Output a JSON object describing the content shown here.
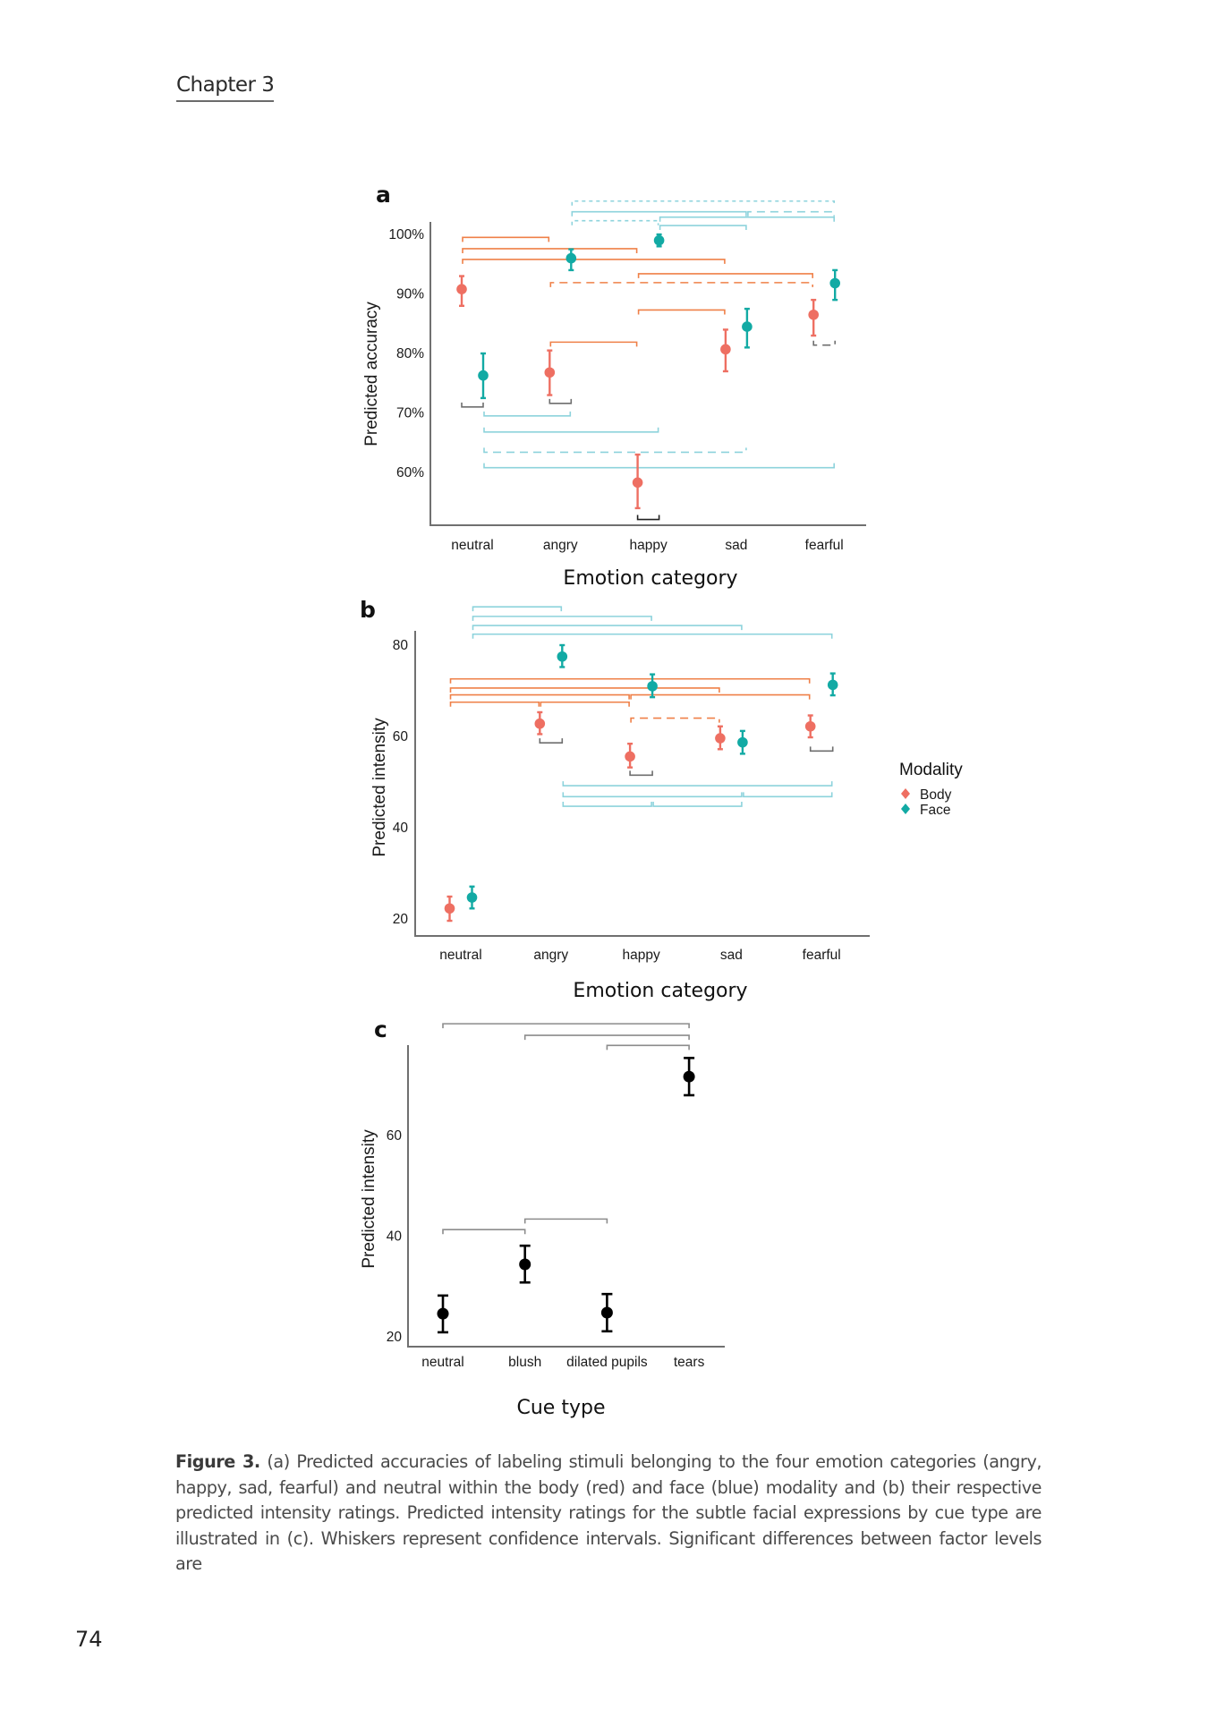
{
  "page": {
    "running_head": "Chapter 3",
    "page_number": "74",
    "caption": {
      "label": "Figure 3.",
      "text": " (a) Predicted accuracies of labeling stimuli belonging to the four emotion categories (angry, happy, sad, fearful) and neutral within the body (red) and face (blue) modality and (b) their respective predicted intensity ratings. Predicted intensity ratings for the subtle facial expressions by cue type are illustrated in (c). Whiskers represent confidence intervals. Significant differences between factor levels are"
    }
  },
  "colors": {
    "body": "#ee6f62",
    "face": "#12aaa4",
    "body_bracket": "#ef8048",
    "face_bracket": "#8dd3dc",
    "within_bracket": "#6e6e6e",
    "cue_points": "#000000",
    "cue_bracket": "#8c8c8c",
    "axis": "#707070"
  },
  "chart_data": [
    {
      "panel": "a",
      "type": "scatter",
      "title": "",
      "xlabel": "Emotion category",
      "ylabel": "Predicted accuracy",
      "categories": [
        "neutral",
        "angry",
        "happy",
        "sad",
        "fearful"
      ],
      "yticks": [
        60,
        70,
        80,
        90,
        100
      ],
      "ytick_labels": [
        "60%",
        "70%",
        "80%",
        "90%",
        "100%"
      ],
      "ylim": [
        55,
        102.5
      ],
      "grid": false,
      "series": [
        {
          "name": "Body",
          "color_key": "body",
          "values": [
            90.8,
            76.8,
            58.3,
            80.7,
            86.5
          ],
          "ci_low": [
            88.0,
            73.0,
            54.0,
            77.0,
            83.0
          ],
          "ci_high": [
            93.0,
            80.5,
            63.0,
            84.0,
            89.0
          ]
        },
        {
          "name": "Face",
          "color_key": "face",
          "values": [
            76.3,
            96.0,
            99.0,
            84.5,
            91.8
          ],
          "ci_low": [
            72.5,
            94.0,
            98.0,
            81.0,
            89.0
          ],
          "ci_high": [
            80.0,
            97.5,
            100.0,
            87.5,
            94.0
          ]
        }
      ],
      "brackets": [
        {
          "group": "face",
          "from": "angry",
          "to": "fearful",
          "y": 105.6,
          "style": "dotted",
          "dir": "down"
        },
        {
          "group": "face",
          "from": "angry",
          "to": "sad",
          "y": 103.8,
          "style": "solid",
          "dir": "down"
        },
        {
          "group": "face",
          "from": "sad",
          "to": "fearful",
          "y": 103.8,
          "style": "dashed",
          "dir": "down"
        },
        {
          "group": "face",
          "from": "happy",
          "to": "fearful",
          "y": 102.9,
          "style": "solid",
          "dir": "down"
        },
        {
          "group": "face",
          "from": "angry",
          "to": "happy",
          "y": 102.3,
          "style": "dotted",
          "dir": "down"
        },
        {
          "group": "face",
          "from": "happy",
          "to": "sad",
          "y": 101.5,
          "style": "solid",
          "dir": "down"
        },
        {
          "group": "body",
          "from": "neutral",
          "to": "angry",
          "y": 99.5,
          "style": "solid",
          "dir": "down"
        },
        {
          "group": "body",
          "from": "neutral",
          "to": "happy",
          "y": 97.6,
          "style": "solid",
          "dir": "down"
        },
        {
          "group": "body",
          "from": "neutral",
          "to": "sad",
          "y": 95.8,
          "style": "solid",
          "dir": "down"
        },
        {
          "group": "body",
          "from": "happy",
          "to": "fearful",
          "y": 93.4,
          "style": "solid",
          "dir": "down"
        },
        {
          "group": "body",
          "from": "angry",
          "to": "fearful",
          "y": 91.9,
          "style": "dashed",
          "dir": "down"
        },
        {
          "group": "body",
          "from": "happy",
          "to": "sad",
          "y": 87.3,
          "style": "solid",
          "dir": "down"
        },
        {
          "group": "body",
          "from": "angry",
          "to": "happy",
          "y": 81.9,
          "style": "solid",
          "dir": "down"
        },
        {
          "group": "within",
          "at": "neutral",
          "y": 71.0,
          "style": "solid",
          "dir": "up"
        },
        {
          "group": "within",
          "at": "angry",
          "y": 71.6,
          "style": "solid",
          "dir": "up"
        },
        {
          "group": "within",
          "at": "happy",
          "y": 52.1,
          "style": "solid",
          "dir": "up"
        },
        {
          "group": "within",
          "at": "fearful",
          "y": 81.4,
          "style": "dashed",
          "dir": "up"
        },
        {
          "group": "face",
          "from": "neutral",
          "to": "angry",
          "y": 69.5,
          "style": "solid",
          "dir": "up"
        },
        {
          "group": "face",
          "from": "neutral",
          "to": "happy",
          "y": 66.8,
          "style": "solid",
          "dir": "up"
        },
        {
          "group": "face",
          "from": "neutral",
          "to": "sad",
          "y": 63.4,
          "style": "dashed",
          "dir": "up"
        },
        {
          "group": "face",
          "from": "neutral",
          "to": "fearful",
          "y": 60.8,
          "style": "solid",
          "dir": "up"
        }
      ]
    },
    {
      "panel": "b",
      "type": "scatter",
      "title": "",
      "xlabel": "Emotion category",
      "ylabel": "Predicted intensity",
      "categories": [
        "neutral",
        "angry",
        "happy",
        "sad",
        "fearful"
      ],
      "yticks": [
        20,
        40,
        60,
        80
      ],
      "ytick_labels": [
        "20",
        "40",
        "60",
        "80"
      ],
      "ylim": [
        16.8,
        83.2
      ],
      "grid": false,
      "legend": {
        "title": "Modality",
        "position": "right",
        "entries": [
          "Body",
          "Face"
        ]
      },
      "series": [
        {
          "name": "Body",
          "color_key": "body",
          "values": [
            22.3,
            62.8,
            55.6,
            59.6,
            62.2
          ],
          "ci_low": [
            19.6,
            60.5,
            53.2,
            57.2,
            59.8
          ],
          "ci_high": [
            24.9,
            65.3,
            58.4,
            62.2,
            64.6
          ]
        },
        {
          "name": "Face",
          "color_key": "face",
          "values": [
            24.7,
            77.5,
            71.0,
            58.7,
            71.3
          ],
          "ci_low": [
            22.3,
            75.2,
            68.6,
            56.2,
            69.0
          ],
          "ci_high": [
            27.1,
            80.0,
            73.6,
            61.2,
            73.8
          ]
        }
      ],
      "brackets": [
        {
          "group": "face",
          "from": "neutral",
          "to": "angry",
          "y": 88.4,
          "style": "solid",
          "dir": "down"
        },
        {
          "group": "face",
          "from": "neutral",
          "to": "happy",
          "y": 86.3,
          "style": "solid",
          "dir": "down"
        },
        {
          "group": "face",
          "from": "neutral",
          "to": "sad",
          "y": 84.3,
          "style": "solid",
          "dir": "down"
        },
        {
          "group": "face",
          "from": "neutral",
          "to": "fearful",
          "y": 82.4,
          "style": "solid",
          "dir": "down"
        },
        {
          "group": "body",
          "from": "neutral",
          "to": "fearful",
          "y": 72.6,
          "style": "solid",
          "dir": "down"
        },
        {
          "group": "body",
          "from": "neutral",
          "to": "sad",
          "y": 70.6,
          "style": "solid",
          "dir": "down"
        },
        {
          "group": "body",
          "from": "neutral",
          "to": "happy",
          "y": 69.1,
          "style": "solid",
          "dir": "down"
        },
        {
          "group": "body",
          "from": "happy",
          "to": "fearful",
          "y": 69.1,
          "style": "solid",
          "dir": "down"
        },
        {
          "group": "body",
          "from": "neutral",
          "to": "angry",
          "y": 67.5,
          "style": "solid",
          "dir": "down"
        },
        {
          "group": "body",
          "from": "angry",
          "to": "happy",
          "y": 67.5,
          "style": "solid",
          "dir": "down"
        },
        {
          "group": "body",
          "from": "happy",
          "to": "sad",
          "y": 64.0,
          "style": "dashed",
          "dir": "down"
        },
        {
          "group": "within",
          "at": "angry",
          "y": 58.6,
          "style": "solid",
          "dir": "up"
        },
        {
          "group": "within",
          "at": "happy",
          "y": 51.5,
          "style": "solid",
          "dir": "up"
        },
        {
          "group": "within",
          "at": "fearful",
          "y": 56.8,
          "style": "solid",
          "dir": "up"
        },
        {
          "group": "face",
          "from": "angry",
          "to": "fearful",
          "y": 49.2,
          "style": "solid",
          "dir": "up"
        },
        {
          "group": "face",
          "from": "angry",
          "to": "sad",
          "y": 46.8,
          "style": "solid",
          "dir": "up"
        },
        {
          "group": "face",
          "from": "sad",
          "to": "fearful",
          "y": 46.8,
          "style": "solid",
          "dir": "up"
        },
        {
          "group": "face",
          "from": "angry",
          "to": "happy",
          "y": 44.7,
          "style": "solid",
          "dir": "up"
        },
        {
          "group": "face",
          "from": "happy",
          "to": "sad",
          "y": 44.7,
          "style": "solid",
          "dir": "up"
        }
      ]
    },
    {
      "panel": "c",
      "type": "scatter",
      "title": "",
      "xlabel": "Cue type",
      "ylabel": "Predicted intensity",
      "categories": [
        "neutral",
        "blush",
        "dilated pupils",
        "tears"
      ],
      "yticks": [
        20,
        40,
        60
      ],
      "ytick_labels": [
        "20",
        "40",
        "60"
      ],
      "ylim": [
        18.2,
        78.0
      ],
      "grid": false,
      "series": [
        {
          "name": "Cue",
          "color_key": "cue_points",
          "values": [
            24.6,
            34.4,
            24.8,
            71.7
          ],
          "ci_low": [
            20.9,
            30.8,
            21.1,
            68.0
          ],
          "ci_high": [
            28.2,
            38.1,
            28.5,
            75.4
          ]
        }
      ],
      "brackets": [
        {
          "group": "cue",
          "from": "neutral",
          "to": "tears",
          "y": 82.2,
          "style": "solid",
          "dir": "down"
        },
        {
          "group": "cue",
          "from": "blush",
          "to": "tears",
          "y": 79.9,
          "style": "solid",
          "dir": "down"
        },
        {
          "group": "cue",
          "from": "dilated pupils",
          "to": "tears",
          "y": 77.9,
          "style": "solid",
          "dir": "down"
        },
        {
          "group": "cue",
          "from": "neutral",
          "to": "blush",
          "y": 41.3,
          "style": "solid",
          "dir": "down"
        },
        {
          "group": "cue",
          "from": "blush",
          "to": "dilated pupils",
          "y": 43.4,
          "style": "solid",
          "dir": "down"
        }
      ]
    }
  ]
}
